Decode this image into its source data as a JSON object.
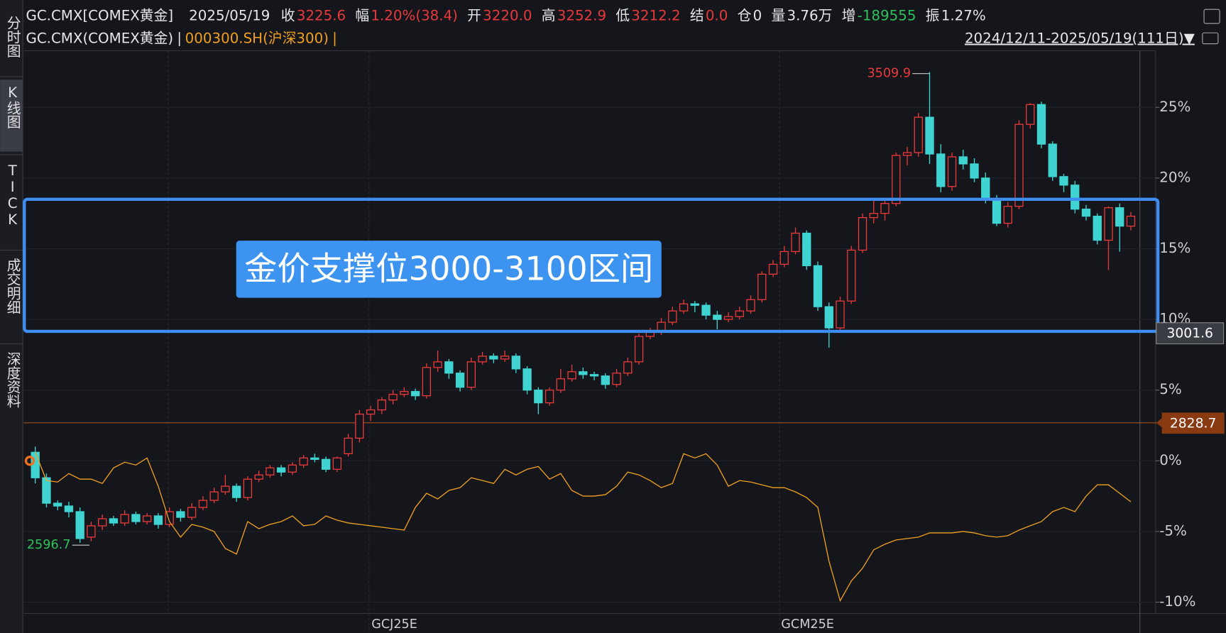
{
  "header": {
    "symbol": "GC.CMX[COMEX黄金]",
    "date": "2025/05/19",
    "fields": [
      {
        "label": "收",
        "value": "3225.6",
        "color": "#e8393b"
      },
      {
        "label": "幅",
        "value": "1.20%(38.4)",
        "color": "#e8393b"
      },
      {
        "label": "开",
        "value": "3220.0",
        "color": "#e8393b"
      },
      {
        "label": "高",
        "value": "3252.9",
        "color": "#e8393b"
      },
      {
        "label": "低",
        "value": "3212.2",
        "color": "#e8393b"
      },
      {
        "label": "结",
        "value": "0.0",
        "color": "#e8393b"
      },
      {
        "label": "仓",
        "value": "0",
        "color": "#e6e6e6"
      },
      {
        "label": "量",
        "value": "3.76万",
        "color": "#e6e6e6"
      },
      {
        "label": "增",
        "value": "-189555",
        "color": "#2fc25b"
      },
      {
        "label": "振",
        "value": "1.27%",
        "color": "#e6e6e6"
      }
    ],
    "range": "2024/12/11-2025/05/19(111日)▼"
  },
  "sidebar": [
    "分时图",
    "K线图",
    "TICK",
    "成交明细",
    "深度资料"
  ],
  "chart_data": {
    "type": "candlestick",
    "series": [
      {
        "name": "GC.CMX(COMEX黄金)",
        "type": "candlestick",
        "up_color": "#e8393b",
        "down_color": "#3fd4d2",
        "ohlc": [
          [
            0.6,
            1.0,
            -1.6,
            -1.2
          ],
          [
            -1.2,
            -0.9,
            -3.3,
            -3.0
          ],
          [
            -3.0,
            -2.8,
            -3.5,
            -3.2
          ],
          [
            -3.2,
            -2.9,
            -4.0,
            -3.6
          ],
          [
            -3.6,
            -3.3,
            -5.8,
            -5.5
          ],
          [
            -5.4,
            -4.3,
            -5.7,
            -4.6
          ],
          [
            -4.6,
            -3.8,
            -4.9,
            -4.1
          ],
          [
            -4.1,
            -3.9,
            -4.6,
            -4.4
          ],
          [
            -4.4,
            -3.5,
            -4.6,
            -3.8
          ],
          [
            -3.8,
            -3.6,
            -4.5,
            -4.3
          ],
          [
            -4.3,
            -3.7,
            -4.5,
            -3.9
          ],
          [
            -3.9,
            -3.7,
            -4.8,
            -4.5
          ],
          [
            -4.5,
            -3.3,
            -4.7,
            -3.6
          ],
          [
            -3.6,
            -3.4,
            -4.3,
            -4.0
          ],
          [
            -4.0,
            -3.0,
            -4.2,
            -3.3
          ],
          [
            -3.3,
            -2.5,
            -3.5,
            -2.8
          ],
          [
            -2.8,
            -1.9,
            -3.0,
            -2.2
          ],
          [
            -2.2,
            -1.0,
            -2.4,
            -1.8
          ],
          [
            -1.8,
            -1.6,
            -2.9,
            -2.6
          ],
          [
            -2.6,
            -1.1,
            -2.8,
            -1.3
          ],
          [
            -1.3,
            -0.7,
            -1.5,
            -1.0
          ],
          [
            -1.0,
            -0.3,
            -1.2,
            -0.5
          ],
          [
            -0.5,
            -0.3,
            -1.1,
            -0.8
          ],
          [
            -0.8,
            -0.1,
            -1.0,
            -0.3
          ],
          [
            -0.3,
            0.4,
            -0.5,
            0.2
          ],
          [
            0.2,
            0.5,
            -0.1,
            0.1
          ],
          [
            0.1,
            0.3,
            -0.8,
            -0.6
          ],
          [
            -0.6,
            0.3,
            -0.8,
            0.2
          ],
          [
            0.5,
            1.9,
            0.3,
            1.6
          ],
          [
            1.6,
            3.6,
            1.3,
            3.3
          ],
          [
            3.3,
            3.9,
            2.8,
            3.6
          ],
          [
            3.6,
            4.5,
            3.3,
            4.3
          ],
          [
            4.3,
            5.0,
            4.0,
            4.7
          ],
          [
            4.7,
            5.2,
            4.5,
            4.9
          ],
          [
            4.9,
            5.1,
            4.3,
            4.6
          ],
          [
            4.6,
            6.9,
            4.4,
            6.6
          ],
          [
            6.6,
            7.8,
            6.3,
            7.0
          ],
          [
            7.0,
            7.2,
            5.8,
            6.2
          ],
          [
            6.2,
            6.4,
            4.9,
            5.2
          ],
          [
            5.2,
            7.3,
            5.0,
            7.0
          ],
          [
            7.0,
            7.7,
            6.8,
            7.4
          ],
          [
            7.4,
            7.6,
            6.9,
            7.2
          ],
          [
            7.2,
            7.8,
            7.0,
            7.4
          ],
          [
            7.4,
            7.6,
            6.2,
            6.5
          ],
          [
            6.5,
            6.7,
            4.7,
            5.0
          ],
          [
            5.0,
            5.2,
            3.3,
            4.1
          ],
          [
            4.1,
            5.2,
            3.9,
            5.0
          ],
          [
            5.0,
            6.5,
            4.8,
            5.8
          ],
          [
            5.8,
            6.8,
            5.6,
            6.3
          ],
          [
            6.3,
            6.6,
            5.8,
            6.1
          ],
          [
            6.1,
            6.3,
            5.7,
            6.0
          ],
          [
            6.0,
            6.2,
            5.1,
            5.4
          ],
          [
            5.4,
            6.5,
            5.2,
            6.2
          ],
          [
            6.2,
            7.3,
            6.0,
            7.0
          ],
          [
            7.0,
            9.0,
            6.8,
            8.8
          ],
          [
            8.8,
            9.4,
            8.6,
            9.1
          ],
          [
            9.1,
            10.1,
            8.9,
            9.8
          ],
          [
            9.8,
            10.9,
            9.6,
            10.6
          ],
          [
            10.6,
            11.4,
            10.4,
            11.1
          ],
          [
            11.1,
            11.3,
            10.5,
            11.0
          ],
          [
            11.0,
            11.2,
            10.0,
            10.3
          ],
          [
            10.3,
            10.6,
            9.3,
            10.0
          ],
          [
            10.0,
            10.5,
            9.8,
            10.2
          ],
          [
            10.2,
            10.9,
            10.0,
            10.6
          ],
          [
            10.6,
            11.7,
            10.4,
            11.4
          ],
          [
            11.4,
            13.4,
            11.2,
            13.2
          ],
          [
            13.2,
            14.2,
            13.0,
            13.9
          ],
          [
            13.9,
            15.2,
            13.7,
            14.8
          ],
          [
            14.8,
            16.5,
            14.6,
            16.1
          ],
          [
            16.1,
            16.3,
            13.5,
            13.8
          ],
          [
            13.8,
            14.1,
            10.6,
            10.9
          ],
          [
            10.9,
            11.2,
            8.0,
            9.4
          ],
          [
            9.4,
            11.6,
            9.1,
            11.3
          ],
          [
            11.3,
            15.2,
            11.1,
            14.9
          ],
          [
            14.9,
            17.5,
            14.7,
            17.2
          ],
          [
            17.2,
            18.4,
            16.8,
            17.5
          ],
          [
            17.5,
            18.6,
            17.0,
            18.2
          ],
          [
            18.2,
            21.8,
            18.0,
            21.6
          ],
          [
            21.6,
            22.2,
            20.9,
            21.8
          ],
          [
            21.8,
            24.6,
            21.5,
            24.3
          ],
          [
            24.3,
            27.5,
            21.0,
            21.7
          ],
          [
            21.7,
            22.4,
            19.0,
            19.4
          ],
          [
            19.4,
            21.8,
            19.1,
            21.5
          ],
          [
            21.5,
            22.0,
            20.6,
            21.0
          ],
          [
            21.0,
            21.4,
            19.7,
            20.0
          ],
          [
            20.0,
            20.4,
            18.2,
            18.5
          ],
          [
            18.5,
            18.8,
            16.6,
            16.8
          ],
          [
            16.8,
            18.3,
            16.5,
            18.0
          ],
          [
            18.0,
            24.1,
            17.8,
            23.8
          ],
          [
            23.8,
            25.3,
            23.5,
            25.2
          ],
          [
            25.2,
            25.4,
            22.1,
            22.4
          ],
          [
            22.4,
            22.6,
            19.8,
            20.1
          ],
          [
            20.1,
            20.3,
            19.0,
            19.5
          ],
          [
            19.5,
            19.8,
            17.5,
            17.8
          ],
          [
            17.8,
            18.1,
            17.0,
            17.3
          ],
          [
            17.3,
            17.5,
            15.3,
            15.6
          ],
          [
            15.6,
            18.0,
            13.5,
            17.9
          ],
          [
            17.9,
            18.2,
            14.8,
            16.6
          ],
          [
            16.6,
            17.6,
            16.3,
            17.3
          ]
        ]
      },
      {
        "name": "000300.SH(沪深300)",
        "type": "line",
        "color": "#f0a020",
        "values": [
          0.6,
          -1.4,
          -1.5,
          -0.9,
          -1.3,
          -1.3,
          -1.6,
          -0.5,
          -0.1,
          -0.3,
          0.2,
          -1.8,
          -4.3,
          -5.4,
          -4.5,
          -4.7,
          -5.0,
          -6.2,
          -6.6,
          -4.3,
          -4.8,
          -4.5,
          -4.3,
          -3.9,
          -4.6,
          -4.5,
          -3.9,
          -4.2,
          -4.4,
          -4.5,
          -4.6,
          -4.7,
          -4.8,
          -4.9,
          -3.3,
          -2.3,
          -2.7,
          -2.1,
          -1.9,
          -1.2,
          -1.4,
          -1.6,
          -0.6,
          -1.0,
          -0.6,
          -0.4,
          -1.3,
          -0.9,
          -2.1,
          -2.5,
          -2.5,
          -2.4,
          -1.8,
          -0.8,
          -1.0,
          -1.4,
          -1.9,
          -1.6,
          0.5,
          0.2,
          0.5,
          -0.3,
          -1.8,
          -1.4,
          -1.5,
          -1.7,
          -1.9,
          -1.9,
          -2.2,
          -2.6,
          -3.3,
          -7.1,
          -9.9,
          -8.5,
          -7.6,
          -6.3,
          -5.9,
          -5.6,
          -5.5,
          -5.4,
          -5.1,
          -5.1,
          -5.1,
          -5.0,
          -5.1,
          -5.3,
          -5.4,
          -5.3,
          -4.9,
          -4.6,
          -4.3,
          -3.6,
          -3.3,
          -3.6,
          -2.5,
          -1.7,
          -1.7,
          -2.3,
          -2.9
        ]
      }
    ],
    "ylim": [
      -10.8,
      29
    ],
    "yticks": [
      {
        "value": -10,
        "label": "-10%"
      },
      {
        "value": -5,
        "label": "-5%"
      },
      {
        "value": 0,
        "label": "0%"
      },
      {
        "value": 5,
        "label": "5%"
      },
      {
        "value": 10,
        "label": "10%"
      },
      {
        "value": 15,
        "label": "15%"
      },
      {
        "value": 20,
        "label": "20%"
      },
      {
        "value": 25,
        "label": "25%"
      }
    ],
    "grid": true,
    "xlabels": [
      "GCJ25E",
      "GCM25E"
    ],
    "annotations": {
      "high": "3509.9",
      "low": "2596.7",
      "box_label": "金价支撑位3000-3100区间"
    },
    "price_tags": [
      "3001.6",
      "2828.7"
    ]
  }
}
